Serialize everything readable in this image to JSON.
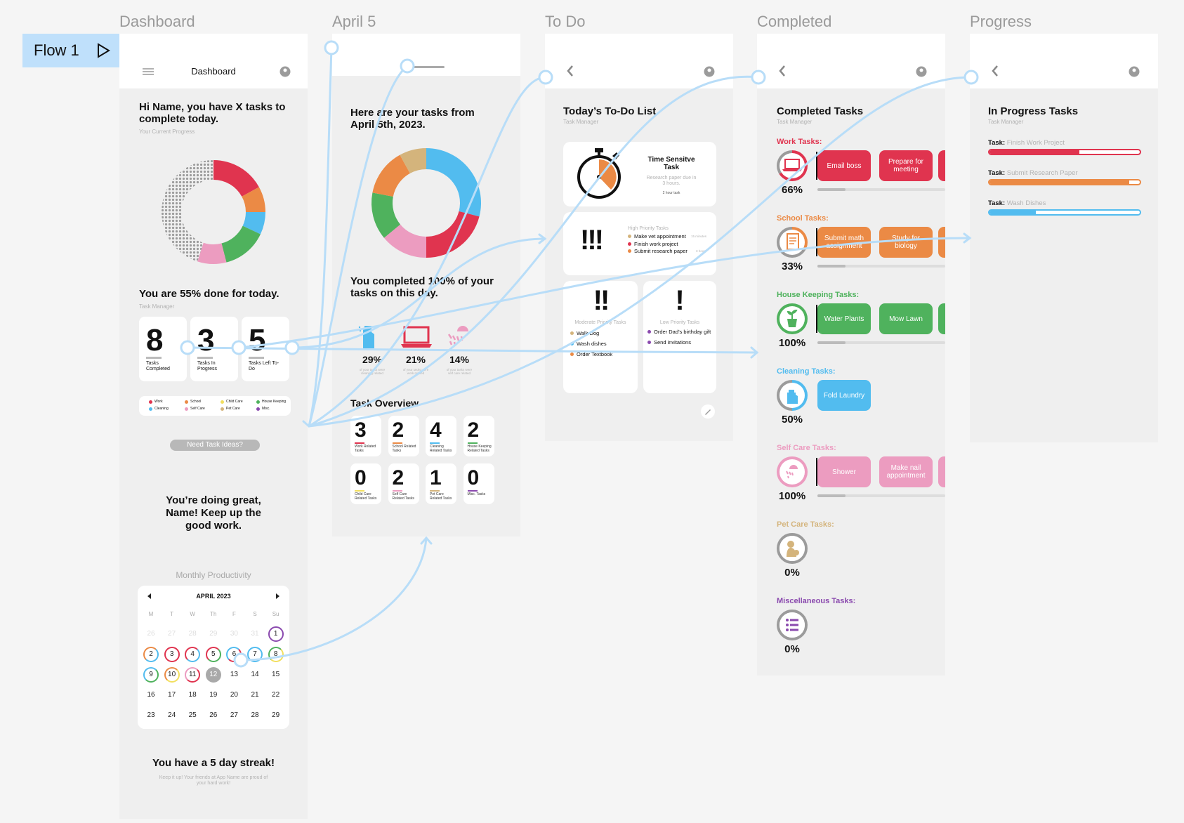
{
  "flow_label": "Flow 1",
  "frames": {
    "dashboard": "Dashboard",
    "april5": "April 5",
    "todo": "To Do",
    "completed": "Completed",
    "progress": "Progress"
  },
  "colors": {
    "work": "#e0344f",
    "school": "#eb8a45",
    "cleaning": "#52bcef",
    "house_keeping": "#4fb25d",
    "self_care": "#ec9cc0",
    "pet_care": "#d4b47c",
    "child_care": "#f2df5f",
    "misc": "#8a49ae",
    "connector": "#b8ddf8"
  },
  "dashboard": {
    "header_title": "Dashboard",
    "greeting": "Hi Name, you have X tasks to complete today.",
    "progress_caption": "Your Current Progress",
    "done_text": "You are 55% done for today.",
    "task_manager": "Task Manager",
    "stats": [
      {
        "value": "8",
        "label": "Tasks Completed"
      },
      {
        "value": "3",
        "label": "Tasks In Progress"
      },
      {
        "value": "5",
        "label": "Tasks Left To-Do"
      }
    ],
    "legend": [
      {
        "label": "Work",
        "color": "#e0344f"
      },
      {
        "label": "School",
        "color": "#eb8a45"
      },
      {
        "label": "Child Care",
        "color": "#f2df5f"
      },
      {
        "label": "House Keeping",
        "color": "#4fb25d"
      },
      {
        "label": "Cleaning",
        "color": "#52bcef"
      },
      {
        "label": "Self Care",
        "color": "#ec9cc0"
      },
      {
        "label": "Pet Care",
        "color": "#d4b47c"
      },
      {
        "label": "Misc.",
        "color": "#8a49ae"
      }
    ],
    "ideas_button": "Need Task Ideas?",
    "encourage": "You’re doing great, Name! Keep up the good work.",
    "monthly": "Monthly Productivity",
    "calendar_month": "APRIL 2023",
    "weekdays": [
      "M",
      "T",
      "W",
      "Th",
      "F",
      "S",
      "Su"
    ],
    "streak": "You have a 5 day streak!",
    "streak_sub": "Keep it up! Your friends at App Name are proud of your hard work!"
  },
  "april": {
    "heading": "Here are your tasks from April 5th, 2023.",
    "complete_text": "You completed 100% of your tasks on this day.",
    "stats": [
      {
        "value": "29%",
        "icon": "spray-bottle-icon",
        "caption": "of your tasks were cleaning related",
        "color": "#52bcef"
      },
      {
        "value": "21%",
        "icon": "laptop-icon",
        "caption": "of your tasks were work related",
        "color": "#e0344f"
      },
      {
        "value": "14%",
        "icon": "shower-icon",
        "caption": "of your tasks were self care related",
        "color": "#ec9cc0"
      }
    ],
    "overview_title": "Task Overview",
    "overview": [
      {
        "n": "3",
        "label": "Work Related Tasks",
        "color": "#e0344f"
      },
      {
        "n": "2",
        "label": "School Related Tasks",
        "color": "#eb8a45"
      },
      {
        "n": "4",
        "label": "Cleaning Related Tasks",
        "color": "#52bcef"
      },
      {
        "n": "2",
        "label": "House Keeping Related Tasks",
        "color": "#4fb25d"
      },
      {
        "n": "0",
        "label": "Child Care Related Tasks",
        "color": "#f2df5f"
      },
      {
        "n": "2",
        "label": "Self Care Related Tasks",
        "color": "#ec9cc0"
      },
      {
        "n": "1",
        "label": "Pet Care Related Tasks",
        "color": "#d4b47c"
      },
      {
        "n": "0",
        "label": "Misc. Tasks",
        "color": "#8a49ae"
      }
    ]
  },
  "todo": {
    "title": "Today’s To-Do List",
    "subtitle": "Task Manager",
    "time_title": "Time Sensitve Task",
    "time_desc": "Research paper due in 3 hours.",
    "time_tag": "2 hour task",
    "high_label": "High Priority Tasks",
    "high_marks": "!!!",
    "high_items": [
      {
        "text": "Make vet appointment",
        "meta": "15 minutes",
        "color": "#d4b47c"
      },
      {
        "text": "Finish work project",
        "meta": "",
        "color": "#e0344f"
      },
      {
        "text": "Submit research paper",
        "meta": "3 hours",
        "color": "#eb8a45"
      }
    ],
    "moderate_marks": "!!",
    "moderate_label": "Moderate Priority Tasks",
    "moderate_items": [
      {
        "text": "Walk Dog",
        "color": "#d4b47c"
      },
      {
        "text": "Wash dishes",
        "color": "#52bcef"
      },
      {
        "text": "Order Textbook",
        "color": "#eb8a45"
      }
    ],
    "low_marks": "!",
    "low_label": "Low Priority Tasks",
    "low_items": [
      {
        "text": "Order Dad’s birthday gift",
        "color": "#8a49ae"
      },
      {
        "text": "Send invitations",
        "color": "#8a49ae"
      }
    ]
  },
  "completed": {
    "title": "Completed Tasks",
    "subtitle": "Task Manager",
    "categories": [
      {
        "title": "Work Tasks:",
        "pct": "66%",
        "color": "#e0344f",
        "chips": [
          "Email boss",
          "Prepare for meeting"
        ]
      },
      {
        "title": "School Tasks:",
        "pct": "33%",
        "color": "#eb8a45",
        "chips": [
          "Submit math assignment",
          "Study for biology"
        ]
      },
      {
        "title": "House Keeping Tasks:",
        "pct": "100%",
        "color": "#4fb25d",
        "chips": [
          "Water Plants",
          "Mow Lawn"
        ]
      },
      {
        "title": "Cleaning Tasks:",
        "pct": "50%",
        "color": "#52bcef",
        "chips": [
          "Fold Laundry"
        ]
      },
      {
        "title": "Self Care Tasks:",
        "pct": "100%",
        "color": "#ec9cc0",
        "chips": [
          "Shower",
          "Make nail appointment"
        ]
      },
      {
        "title": "Pet Care Tasks:",
        "pct": "0%",
        "color": "#d4b47c",
        "chips": []
      },
      {
        "title": "Miscellaneous Tasks:",
        "pct": "0%",
        "color": "#8a49ae",
        "chips": []
      }
    ]
  },
  "progress": {
    "title": "In Progress Tasks",
    "subtitle": "Task Manager",
    "task_prefix": "Task:",
    "tasks": [
      {
        "name": "Finish Work Project",
        "fill": 0.6,
        "color": "#e0344f"
      },
      {
        "name": "Submit Research Paper",
        "fill": 0.93,
        "color": "#eb8a45"
      },
      {
        "name": "Wash Dishes",
        "fill": 0.31,
        "color": "#52bcef"
      }
    ]
  }
}
